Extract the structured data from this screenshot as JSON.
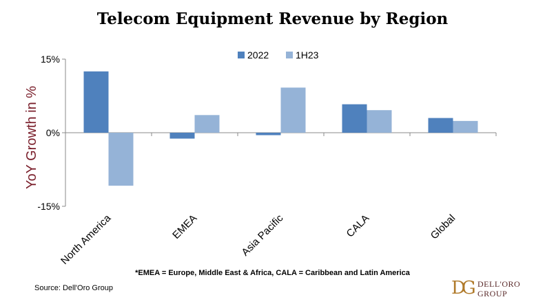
{
  "title": "Telecom Equipment Revenue by Region",
  "footnote": "*EMEA = Europe, Middle East & Africa, CALA = Caribbean and Latin America",
  "source": "Source: Dell'Oro Group",
  "logo": {
    "mark": "DG",
    "line1": "DELL'ORO",
    "line2": "GROUP"
  },
  "chart_data": {
    "type": "bar",
    "title": "Telecom Equipment Revenue by Region",
    "ylabel": "YoY Growth in %",
    "xlabel": "",
    "categories": [
      "North America",
      "EMEA",
      "Asia Pacific",
      "CALA",
      "Global"
    ],
    "series": [
      {
        "name": "2022",
        "values": [
          12.5,
          -1.2,
          -0.5,
          5.8,
          3.0
        ],
        "color": "#4f81bd"
      },
      {
        "name": "1H23",
        "values": [
          -10.8,
          3.6,
          9.2,
          4.6,
          2.4
        ],
        "color": "#95b3d7"
      }
    ],
    "ylim": [
      -15,
      15
    ],
    "yticks": [
      15,
      0,
      -15
    ],
    "ytick_labels": [
      "15%",
      "0%",
      "-15%"
    ],
    "grid": false,
    "legend_position": "top-center"
  }
}
